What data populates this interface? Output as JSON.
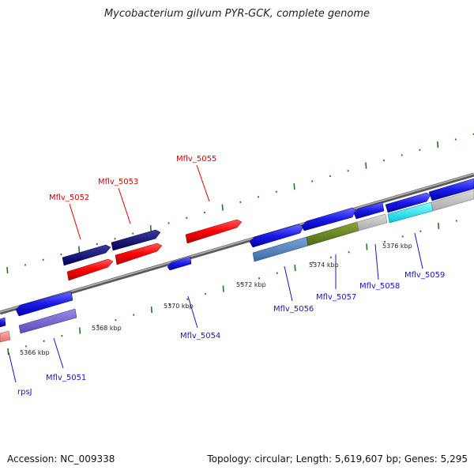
{
  "title": "Mycobacterium gilvum PYR-GCK, complete genome",
  "footer": {
    "accession": "Accession: NC_009338",
    "summary": "Topology: circular; Length: 5,619,607 bp; Genes: 5,295"
  },
  "colors": {
    "backbone": "#8a8a8a",
    "tick": "#1f7a1f",
    "red_label": "#e00000",
    "blue_label": "#1414d0"
  },
  "kbp_ticks": [
    {
      "label": "5366 kbp",
      "kbp": 5366
    },
    {
      "label": "5368 kbp",
      "kbp": 5368
    },
    {
      "label": "5370 kbp",
      "kbp": 5370
    },
    {
      "label": "5372 kbp",
      "kbp": 5372
    },
    {
      "label": "5374 kbp",
      "kbp": 5374
    },
    {
      "label": "5376 kbp",
      "kbp": 5376
    }
  ],
  "gene_labels_forward": [
    {
      "name": "Mflv_5052"
    },
    {
      "name": "Mflv_5053"
    },
    {
      "name": "Mflv_5055"
    }
  ],
  "gene_labels_reverse": [
    {
      "name": "rpsJ"
    },
    {
      "name": "Mflv_5051"
    },
    {
      "name": "Mflv_5054"
    },
    {
      "name": "Mflv_5056"
    },
    {
      "name": "Mflv_5057"
    },
    {
      "name": "Mflv_5058"
    },
    {
      "name": "Mflv_5059"
    }
  ]
}
